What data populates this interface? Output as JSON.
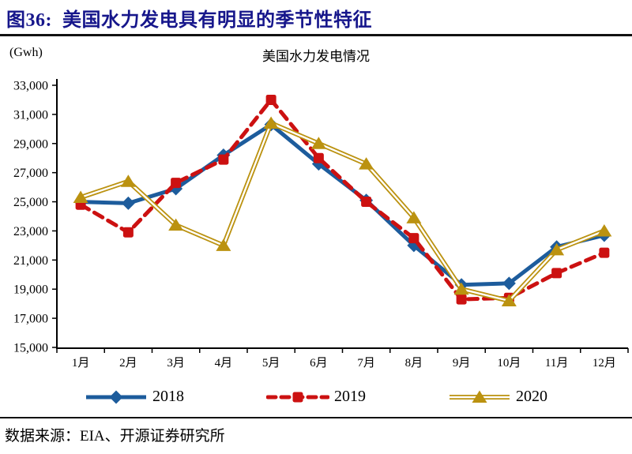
{
  "header": {
    "figure_title": "图36:  美国水力发电具有明显的季节性特征",
    "title_color": "#16168B"
  },
  "chart": {
    "unit_label": "(Gwh)",
    "title": "美国水力发电情况"
  },
  "chart_data": {
    "type": "line",
    "title": "美国水力发电情况",
    "ylabel": "(Gwh)",
    "categories": [
      "1月",
      "2月",
      "3月",
      "4月",
      "5月",
      "6月",
      "7月",
      "8月",
      "9月",
      "10月",
      "11月",
      "12月"
    ],
    "series": [
      {
        "name": "2018",
        "color": "#1D5C9C",
        "style": "solid",
        "marker": "diamond",
        "values": [
          25000,
          24900,
          25900,
          28200,
          30300,
          27600,
          25100,
          22000,
          19300,
          19400,
          21900,
          22700
        ]
      },
      {
        "name": "2019",
        "color": "#CC1111",
        "style": "dashed",
        "marker": "square",
        "values": [
          24800,
          22900,
          26300,
          27900,
          32000,
          28000,
          25000,
          22500,
          18300,
          18400,
          20100,
          21500
        ]
      },
      {
        "name": "2020",
        "color": "#BB9210",
        "style": "double",
        "marker": "triangle",
        "values": [
          25300,
          26400,
          23400,
          22000,
          30400,
          29000,
          27600,
          23900,
          19000,
          18200,
          21700,
          23000
        ]
      }
    ],
    "ylim": [
      15000,
      33000
    ],
    "ytick_step": 2000,
    "ytick_labels": [
      "33,000",
      "31,000",
      "29,000",
      "27,000",
      "25,000",
      "23,000",
      "21,000",
      "19,000",
      "17,000",
      "15,000"
    ],
    "ytick_values": [
      33000,
      31000,
      29000,
      27000,
      25000,
      23000,
      21000,
      19000,
      17000,
      15000
    ],
    "grid": false,
    "legend_position": "bottom"
  },
  "legend": {
    "items": [
      {
        "label": "2018"
      },
      {
        "label": "2019"
      },
      {
        "label": "2020"
      }
    ]
  },
  "footer": {
    "source": "数据来源：EIA、开源证券研究所"
  }
}
